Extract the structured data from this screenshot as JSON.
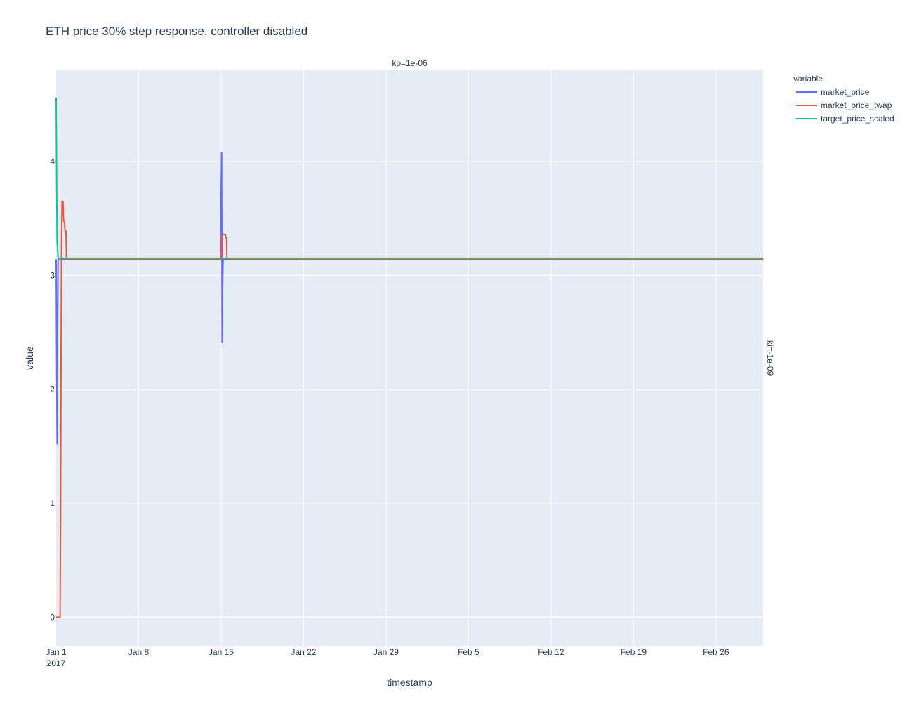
{
  "chart_data": {
    "type": "line",
    "title": "ETH price 30% step response, controller disabled",
    "xlabel": "timestamp",
    "ylabel": "value",
    "facet_col_label": "kp=1e-06",
    "facet_row_label": "ki=-1e-09",
    "legend_title": "variable",
    "legend_position": "right",
    "grid": true,
    "x_ticks": [
      {
        "value": "2017-01-01",
        "label": "Jan 1",
        "sublabel": "2017"
      },
      {
        "value": "2017-01-08",
        "label": "Jan 8"
      },
      {
        "value": "2017-01-15",
        "label": "Jan 15"
      },
      {
        "value": "2017-01-22",
        "label": "Jan 22"
      },
      {
        "value": "2017-01-29",
        "label": "Jan 29"
      },
      {
        "value": "2017-02-05",
        "label": "Feb 5"
      },
      {
        "value": "2017-02-12",
        "label": "Feb 12"
      },
      {
        "value": "2017-02-19",
        "label": "Feb 19"
      },
      {
        "value": "2017-02-26",
        "label": "Feb 26"
      }
    ],
    "xlim": [
      "2017-01-01",
      "2017-03-02T00:00"
    ],
    "y_ticks": [
      0,
      1,
      2,
      3,
      4
    ],
    "ylim": [
      -0.25,
      4.8
    ],
    "series": [
      {
        "name": "market_price",
        "color": "#636efa",
        "points": [
          [
            "2017-01-01T00:00",
            3.14
          ],
          [
            "2017-01-01T01:00",
            2.2
          ],
          [
            "2017-01-01T02:00",
            1.52
          ],
          [
            "2017-01-01T03:00",
            2.6
          ],
          [
            "2017-01-01T04:00",
            3.14
          ],
          [
            "2017-01-02T00:00",
            3.14
          ],
          [
            "2017-01-14T23:00",
            3.14
          ],
          [
            "2017-01-15T00:00",
            3.7
          ],
          [
            "2017-01-15T01:00",
            4.08
          ],
          [
            "2017-01-15T02:00",
            2.41
          ],
          [
            "2017-01-15T03:00",
            2.9
          ],
          [
            "2017-01-15T04:00",
            3.14
          ],
          [
            "2017-03-02T00:00",
            3.14
          ]
        ]
      },
      {
        "name": "market_price_twap",
        "color": "#ef553b",
        "points": [
          [
            "2017-01-01T00:00",
            0.0
          ],
          [
            "2017-01-01T08:00",
            0.0
          ],
          [
            "2017-01-01T09:00",
            0.9
          ],
          [
            "2017-01-01T10:00",
            2.25
          ],
          [
            "2017-01-01T11:00",
            3.3
          ],
          [
            "2017-01-01T12:00",
            3.65
          ],
          [
            "2017-01-01T14:00",
            3.65
          ],
          [
            "2017-01-01T15:00",
            3.48
          ],
          [
            "2017-01-01T17:00",
            3.47
          ],
          [
            "2017-01-01T18:00",
            3.39
          ],
          [
            "2017-01-01T20:00",
            3.39
          ],
          [
            "2017-01-01T21:00",
            3.14
          ],
          [
            "2017-01-15T00:00",
            3.14
          ],
          [
            "2017-01-15T01:00",
            3.32
          ],
          [
            "2017-01-15T04:00",
            3.36
          ],
          [
            "2017-01-15T08:00",
            3.36
          ],
          [
            "2017-01-15T11:00",
            3.32
          ],
          [
            "2017-01-15T12:00",
            3.14
          ],
          [
            "2017-03-02T00:00",
            3.14
          ]
        ]
      },
      {
        "name": "target_price_scaled",
        "color": "#00cc96",
        "points": [
          [
            "2017-01-01T00:00",
            4.56
          ],
          [
            "2017-01-01T01:00",
            3.8
          ],
          [
            "2017-01-01T02:00",
            3.3
          ],
          [
            "2017-01-01T04:00",
            3.15
          ],
          [
            "2017-03-02T00:00",
            3.15
          ]
        ]
      }
    ]
  }
}
